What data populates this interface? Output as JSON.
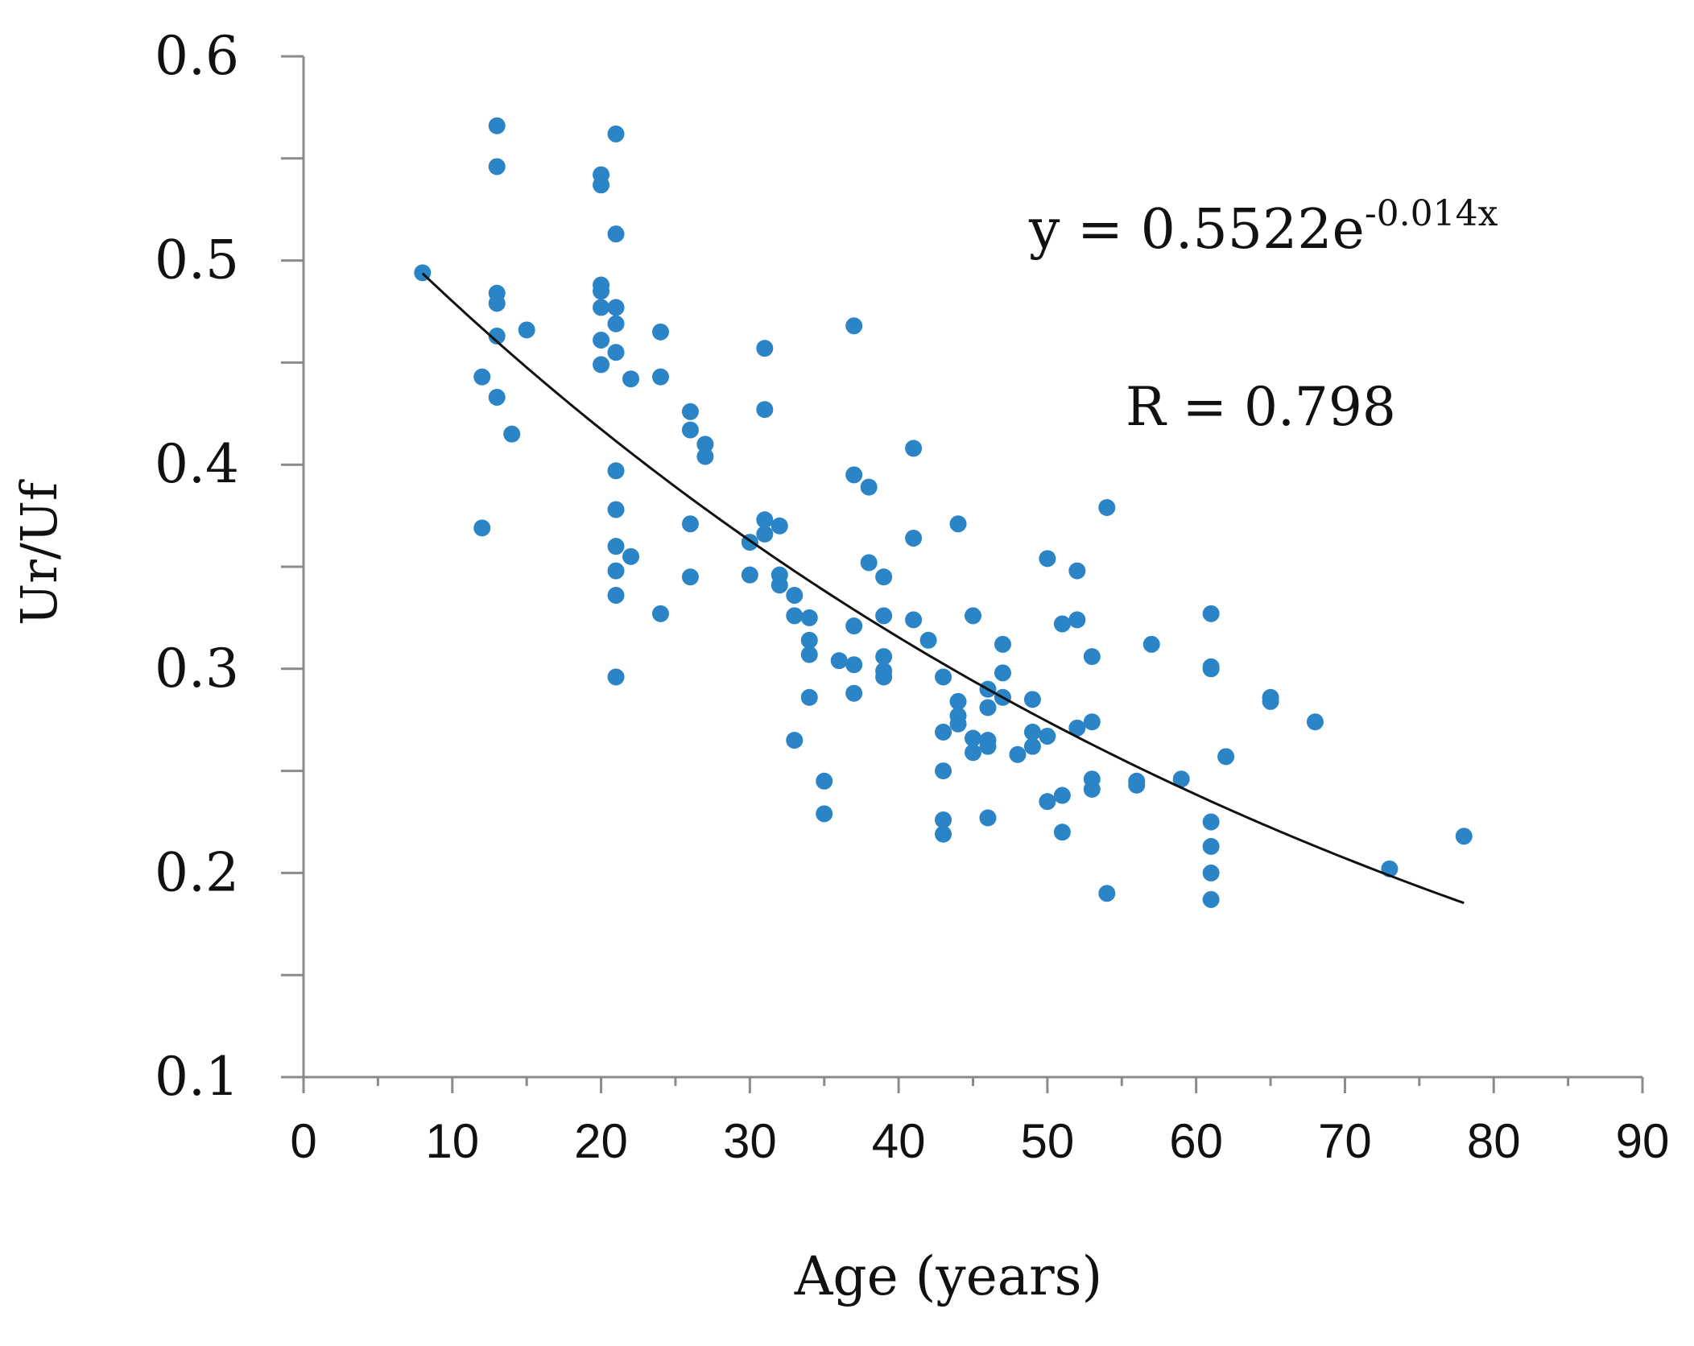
{
  "colors": {
    "point": "#2a84c6",
    "axis": "#8a8a8a",
    "trend": "#111111",
    "text": "#111111"
  },
  "chart_data": {
    "type": "scatter",
    "title": "",
    "xlabel": "Age (years)",
    "ylabel": "Ur/Uf",
    "xlim": [
      0,
      90
    ],
    "ylim": [
      0.1,
      0.6
    ],
    "x_ticks": [
      "0",
      "10",
      "20",
      "30",
      "40",
      "50",
      "60",
      "70",
      "80",
      "90"
    ],
    "y_ticks": [
      "0.1",
      "0.2",
      "0.3",
      "0.4",
      "0.5",
      "0.6"
    ],
    "x_tick_values": [
      0,
      10,
      20,
      30,
      40,
      50,
      60,
      70,
      80,
      90
    ],
    "y_tick_values": [
      0.1,
      0.2,
      0.3,
      0.4,
      0.5,
      0.6
    ],
    "x_minor_tick_values": [
      5,
      15,
      25,
      35,
      45,
      55,
      65,
      75,
      85
    ],
    "y_minor_tick_values": [
      0.15,
      0.25,
      0.35,
      0.45,
      0.55
    ],
    "grid": false,
    "legend": "none",
    "annotations": {
      "equation_prefix": "y = 0.5522e",
      "equation_exponent": "-0.014x",
      "r_value": "R = 0.798"
    },
    "trendline": {
      "type": "exponential",
      "a": 0.5522,
      "b": -0.014,
      "x_range": [
        8,
        78
      ]
    },
    "series": [
      {
        "name": "Ur/Uf",
        "points": [
          [
            8,
            0.494
          ],
          [
            12,
            0.443
          ],
          [
            12,
            0.369
          ],
          [
            13,
            0.566
          ],
          [
            13,
            0.546
          ],
          [
            13,
            0.484
          ],
          [
            13,
            0.479
          ],
          [
            13,
            0.463
          ],
          [
            13,
            0.433
          ],
          [
            14,
            0.415
          ],
          [
            15,
            0.466
          ],
          [
            20,
            0.542
          ],
          [
            20,
            0.537
          ],
          [
            20,
            0.488
          ],
          [
            20,
            0.485
          ],
          [
            20,
            0.477
          ],
          [
            20,
            0.461
          ],
          [
            20,
            0.449
          ],
          [
            21,
            0.562
          ],
          [
            21,
            0.513
          ],
          [
            21,
            0.477
          ],
          [
            21,
            0.469
          ],
          [
            21,
            0.455
          ],
          [
            21,
            0.397
          ],
          [
            21,
            0.378
          ],
          [
            21,
            0.36
          ],
          [
            21,
            0.348
          ],
          [
            21,
            0.336
          ],
          [
            21,
            0.296
          ],
          [
            22,
            0.442
          ],
          [
            22,
            0.355
          ],
          [
            24,
            0.465
          ],
          [
            24,
            0.443
          ],
          [
            24,
            0.327
          ],
          [
            26,
            0.426
          ],
          [
            26,
            0.417
          ],
          [
            26,
            0.371
          ],
          [
            26,
            0.345
          ],
          [
            27,
            0.41
          ],
          [
            27,
            0.404
          ],
          [
            30,
            0.362
          ],
          [
            30,
            0.346
          ],
          [
            31,
            0.457
          ],
          [
            31,
            0.427
          ],
          [
            31,
            0.373
          ],
          [
            31,
            0.366
          ],
          [
            32,
            0.37
          ],
          [
            32,
            0.346
          ],
          [
            32,
            0.341
          ],
          [
            33,
            0.336
          ],
          [
            33,
            0.326
          ],
          [
            33,
            0.265
          ],
          [
            34,
            0.325
          ],
          [
            34,
            0.314
          ],
          [
            34,
            0.307
          ],
          [
            34,
            0.286
          ],
          [
            35,
            0.245
          ],
          [
            35,
            0.229
          ],
          [
            36,
            0.304
          ],
          [
            37,
            0.468
          ],
          [
            37,
            0.395
          ],
          [
            37,
            0.321
          ],
          [
            37,
            0.302
          ],
          [
            37,
            0.288
          ],
          [
            38,
            0.389
          ],
          [
            38,
            0.352
          ],
          [
            39,
            0.345
          ],
          [
            39,
            0.326
          ],
          [
            39,
            0.306
          ],
          [
            39,
            0.299
          ],
          [
            39,
            0.296
          ],
          [
            41,
            0.408
          ],
          [
            41,
            0.364
          ],
          [
            41,
            0.324
          ],
          [
            42,
            0.314
          ],
          [
            43,
            0.296
          ],
          [
            43,
            0.269
          ],
          [
            43,
            0.25
          ],
          [
            43,
            0.226
          ],
          [
            43,
            0.219
          ],
          [
            44,
            0.371
          ],
          [
            44,
            0.284
          ],
          [
            44,
            0.277
          ],
          [
            44,
            0.273
          ],
          [
            45,
            0.326
          ],
          [
            45,
            0.266
          ],
          [
            45,
            0.259
          ],
          [
            46,
            0.29
          ],
          [
            46,
            0.281
          ],
          [
            46,
            0.265
          ],
          [
            46,
            0.262
          ],
          [
            46,
            0.227
          ],
          [
            47,
            0.312
          ],
          [
            47,
            0.298
          ],
          [
            47,
            0.286
          ],
          [
            48,
            0.258
          ],
          [
            49,
            0.285
          ],
          [
            49,
            0.269
          ],
          [
            49,
            0.262
          ],
          [
            50,
            0.354
          ],
          [
            50,
            0.267
          ],
          [
            50,
            0.235
          ],
          [
            51,
            0.322
          ],
          [
            51,
            0.238
          ],
          [
            51,
            0.22
          ],
          [
            52,
            0.348
          ],
          [
            52,
            0.324
          ],
          [
            52,
            0.271
          ],
          [
            53,
            0.306
          ],
          [
            53,
            0.274
          ],
          [
            53,
            0.246
          ],
          [
            53,
            0.241
          ],
          [
            54,
            0.379
          ],
          [
            54,
            0.19
          ],
          [
            56,
            0.245
          ],
          [
            56,
            0.243
          ],
          [
            57,
            0.312
          ],
          [
            59,
            0.246
          ],
          [
            61,
            0.327
          ],
          [
            61,
            0.301
          ],
          [
            61,
            0.3
          ],
          [
            61,
            0.225
          ],
          [
            61,
            0.213
          ],
          [
            61,
            0.2
          ],
          [
            61,
            0.187
          ],
          [
            62,
            0.257
          ],
          [
            65,
            0.286
          ],
          [
            65,
            0.284
          ],
          [
            68,
            0.274
          ],
          [
            73,
            0.202
          ],
          [
            78,
            0.218
          ]
        ]
      }
    ]
  }
}
